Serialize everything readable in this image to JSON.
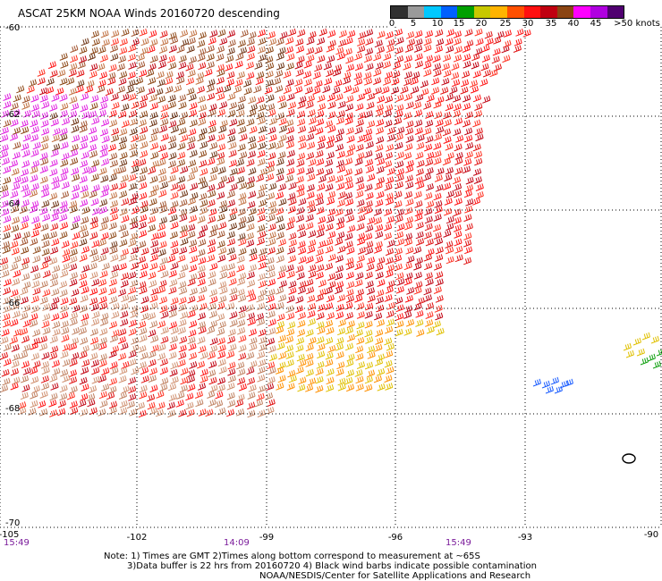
{
  "title": "ASCAT 25KM NOAA Winds 20160720 descending",
  "legend": {
    "colors": [
      "#303030",
      "#9a9a9a",
      "#00c8ff",
      "#0060ff",
      "#00a000",
      "#c8c800",
      "#ffb400",
      "#ff5000",
      "#ff1010",
      "#c00010",
      "#8b4513",
      "#ff00ff",
      "#b000e0",
      "#500070"
    ],
    "labels": [
      "0",
      "5",
      "10",
      "15",
      "20",
      "25",
      "30",
      "35",
      "40",
      "45",
      ">50 knots"
    ]
  },
  "axes": {
    "lat_labels": [
      "-60",
      "-62",
      "-64",
      "-66",
      "-68",
      "-70"
    ],
    "lon_labels": [
      "-105",
      "-102",
      "-99",
      "-96",
      "-93",
      "-90"
    ]
  },
  "times": [
    "15:49",
    "14:09",
    "15:49"
  ],
  "notes": [
    "Note: 1) Times are GMT 2)Times along bottom correspond to measurement at ~65S",
    "3)Data buffer is 22 hrs from 20160720 4) Black wind barbs indicate possible contamination",
    "NOAA/NESDIS/Center for Satellite Applications and Research"
  ]
}
